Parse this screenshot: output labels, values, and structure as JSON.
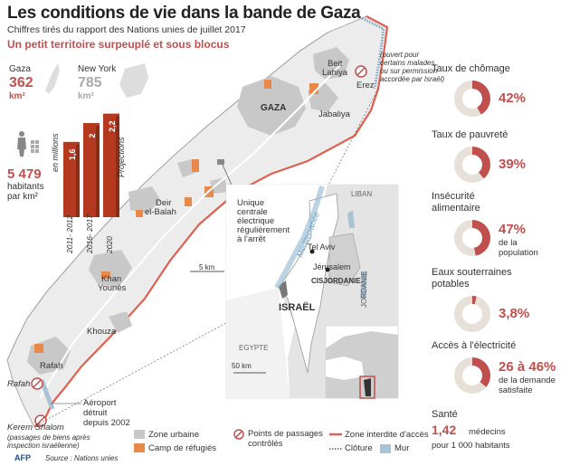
{
  "header": {
    "title": "Les conditions de vie dans la bande de Gaza",
    "subtitle": "Chiffres tirés du rapport des Nations unies de juillet 2017",
    "tagline": "Un petit territoire surpeuplé et sous blocus"
  },
  "area": {
    "gaza_label": "Gaza",
    "gaza_value": "362",
    "gaza_unit": "km²",
    "ny_label": "New York",
    "ny_value": "785",
    "ny_unit": "km²"
  },
  "density": {
    "value": "5 479",
    "unit_line1": "habitants",
    "unit_line2": "par km²"
  },
  "population_chart": {
    "unit": "en millions",
    "projection_label": "Projections",
    "bars": [
      {
        "period_line1": "2011-",
        "period_line2": "2012",
        "value": 1.6,
        "value_label": "1,6"
      },
      {
        "period_line1": "2016-",
        "period_line2": "2017",
        "value": 2.0,
        "value_label": "2"
      },
      {
        "period_line1": "2020",
        "period_line2": "",
        "value": 2.2,
        "value_label": "2,2"
      }
    ]
  },
  "map": {
    "places": {
      "beit_lahiya_1": "Beit",
      "beit_lahiya_2": "Lahiya",
      "erez": "Erez",
      "erez_note": [
        "(ouvert pour",
        "certains malades",
        "ou sur permission",
        "accordée par Israël)"
      ],
      "gaza_city": "GAZA",
      "jabaliya": "Jabaliya",
      "deir_1": "Deir",
      "deir_2": "el-Balah",
      "khan_1": "Khan",
      "khan_2": "Younès",
      "khouza": "Khouza",
      "rafah_city": "Rafah",
      "rafah_crossing": "Rafah",
      "kerem": "Kerem Shalom",
      "kerem_note": [
        "(passages de biens après",
        "inspection israélienne)"
      ],
      "airport": [
        "Aéroport",
        "détruit",
        "depuis 2002"
      ],
      "power_plant": [
        "Unique",
        "centrale",
        "électrique",
        "régulièrement",
        "à l'arrêt"
      ],
      "scale": "5 km"
    },
    "inset": {
      "liban": "LIBAN",
      "mediterranee": "Méditerranée",
      "tel_aviv": "Tel Aviv",
      "jerusalem": "Jérusalem",
      "cisjordanie": "CISJORDANIE",
      "jordanie": "JORDANIE",
      "israel": "ISRAËL",
      "egypte": "EGYPTE",
      "scale": "50 km"
    }
  },
  "indicators": [
    {
      "title": [
        "Taux de chômage"
      ],
      "value": "42%",
      "fraction": 0.42,
      "note": []
    },
    {
      "title": [
        "Taux de pauvreté"
      ],
      "value": "39%",
      "fraction": 0.39,
      "note": []
    },
    {
      "title": [
        "Insécurité",
        "alimentaire"
      ],
      "value": "47%",
      "fraction": 0.47,
      "note": [
        "de la",
        "population"
      ]
    },
    {
      "title": [
        "Eaux souterraines",
        "potables"
      ],
      "value": "3,8%",
      "fraction": 0.038,
      "note": []
    },
    {
      "title": [
        "Accès à l'électricité"
      ],
      "value": "26 à 46%",
      "fraction": 0.36,
      "note": [
        "de la demande",
        "satisfaite"
      ]
    }
  ],
  "health": {
    "title": "Santé",
    "value": "1,42",
    "unit": "médecins",
    "note": "pour 1 000 habitants"
  },
  "legend": {
    "urban": "Zone urbaine",
    "refugee": "Camp de réfugiés",
    "crossings": [
      "Points de passages",
      "contrôlés"
    ],
    "forbidden": "Zone interdite d'accès",
    "fence": "Clôture",
    "wall": "Mur"
  },
  "footer": {
    "logo": "AFP",
    "source": "Source : Nations unies"
  },
  "colors": {
    "accent": "#c0504d",
    "bar": "#b5391f",
    "urban": "#c8c8c8",
    "refugee": "#e8894b",
    "territory": "#ececec",
    "wall": "#a9c3d4"
  }
}
